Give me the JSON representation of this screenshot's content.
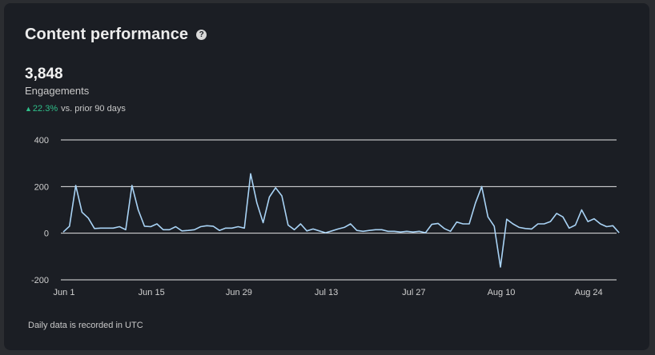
{
  "card": {
    "title": "Content performance",
    "help_icon": "question-circle-icon",
    "metric_value": "3,848",
    "metric_label": "Engagements",
    "change_arrow": "▲",
    "change_pct": "22.3%",
    "change_text": "vs. prior 90 days",
    "footnote": "Daily data is recorded in UTC"
  },
  "colors": {
    "background": "#1b1e24",
    "line": "#a9d3f5",
    "grid": "#e6e6e6",
    "positive": "#2fbf8a"
  },
  "chart_data": {
    "type": "line",
    "title": "",
    "xlabel": "",
    "ylabel": "",
    "ylim": [
      -200,
      400
    ],
    "yticks": [
      "400",
      "200",
      "0",
      "-200"
    ],
    "ytick_values": [
      400,
      200,
      0,
      -200
    ],
    "xticks": [
      "Jun 1",
      "Jun 15",
      "Jun 29",
      "Jul 13",
      "Jul 27",
      "Aug 10",
      "Aug 24"
    ],
    "xtick_days": [
      0,
      14,
      28,
      42,
      56,
      70,
      84
    ],
    "grid": true,
    "legend": "none",
    "series": [
      {
        "x_start": "Jun 1",
        "values": [
          5,
          30,
          205,
          90,
          65,
          20,
          22,
          22,
          22,
          28,
          15,
          205,
          100,
          30,
          28,
          40,
          15,
          15,
          28,
          10,
          12,
          15,
          28,
          32,
          30,
          12,
          22,
          22,
          28,
          22,
          255,
          130,
          45,
          155,
          195,
          160,
          35,
          15,
          40,
          10,
          18,
          10,
          2,
          10,
          18,
          25,
          40,
          12,
          8,
          12,
          15,
          15,
          8,
          8,
          5,
          8,
          5,
          8,
          2,
          38,
          42,
          20,
          8,
          48,
          40,
          40,
          130,
          200,
          70,
          30,
          -145,
          60,
          40,
          25,
          20,
          18,
          40,
          40,
          50,
          85,
          70,
          22,
          35,
          100,
          50,
          62,
          40,
          28,
          32,
          2
        ]
      }
    ]
  }
}
